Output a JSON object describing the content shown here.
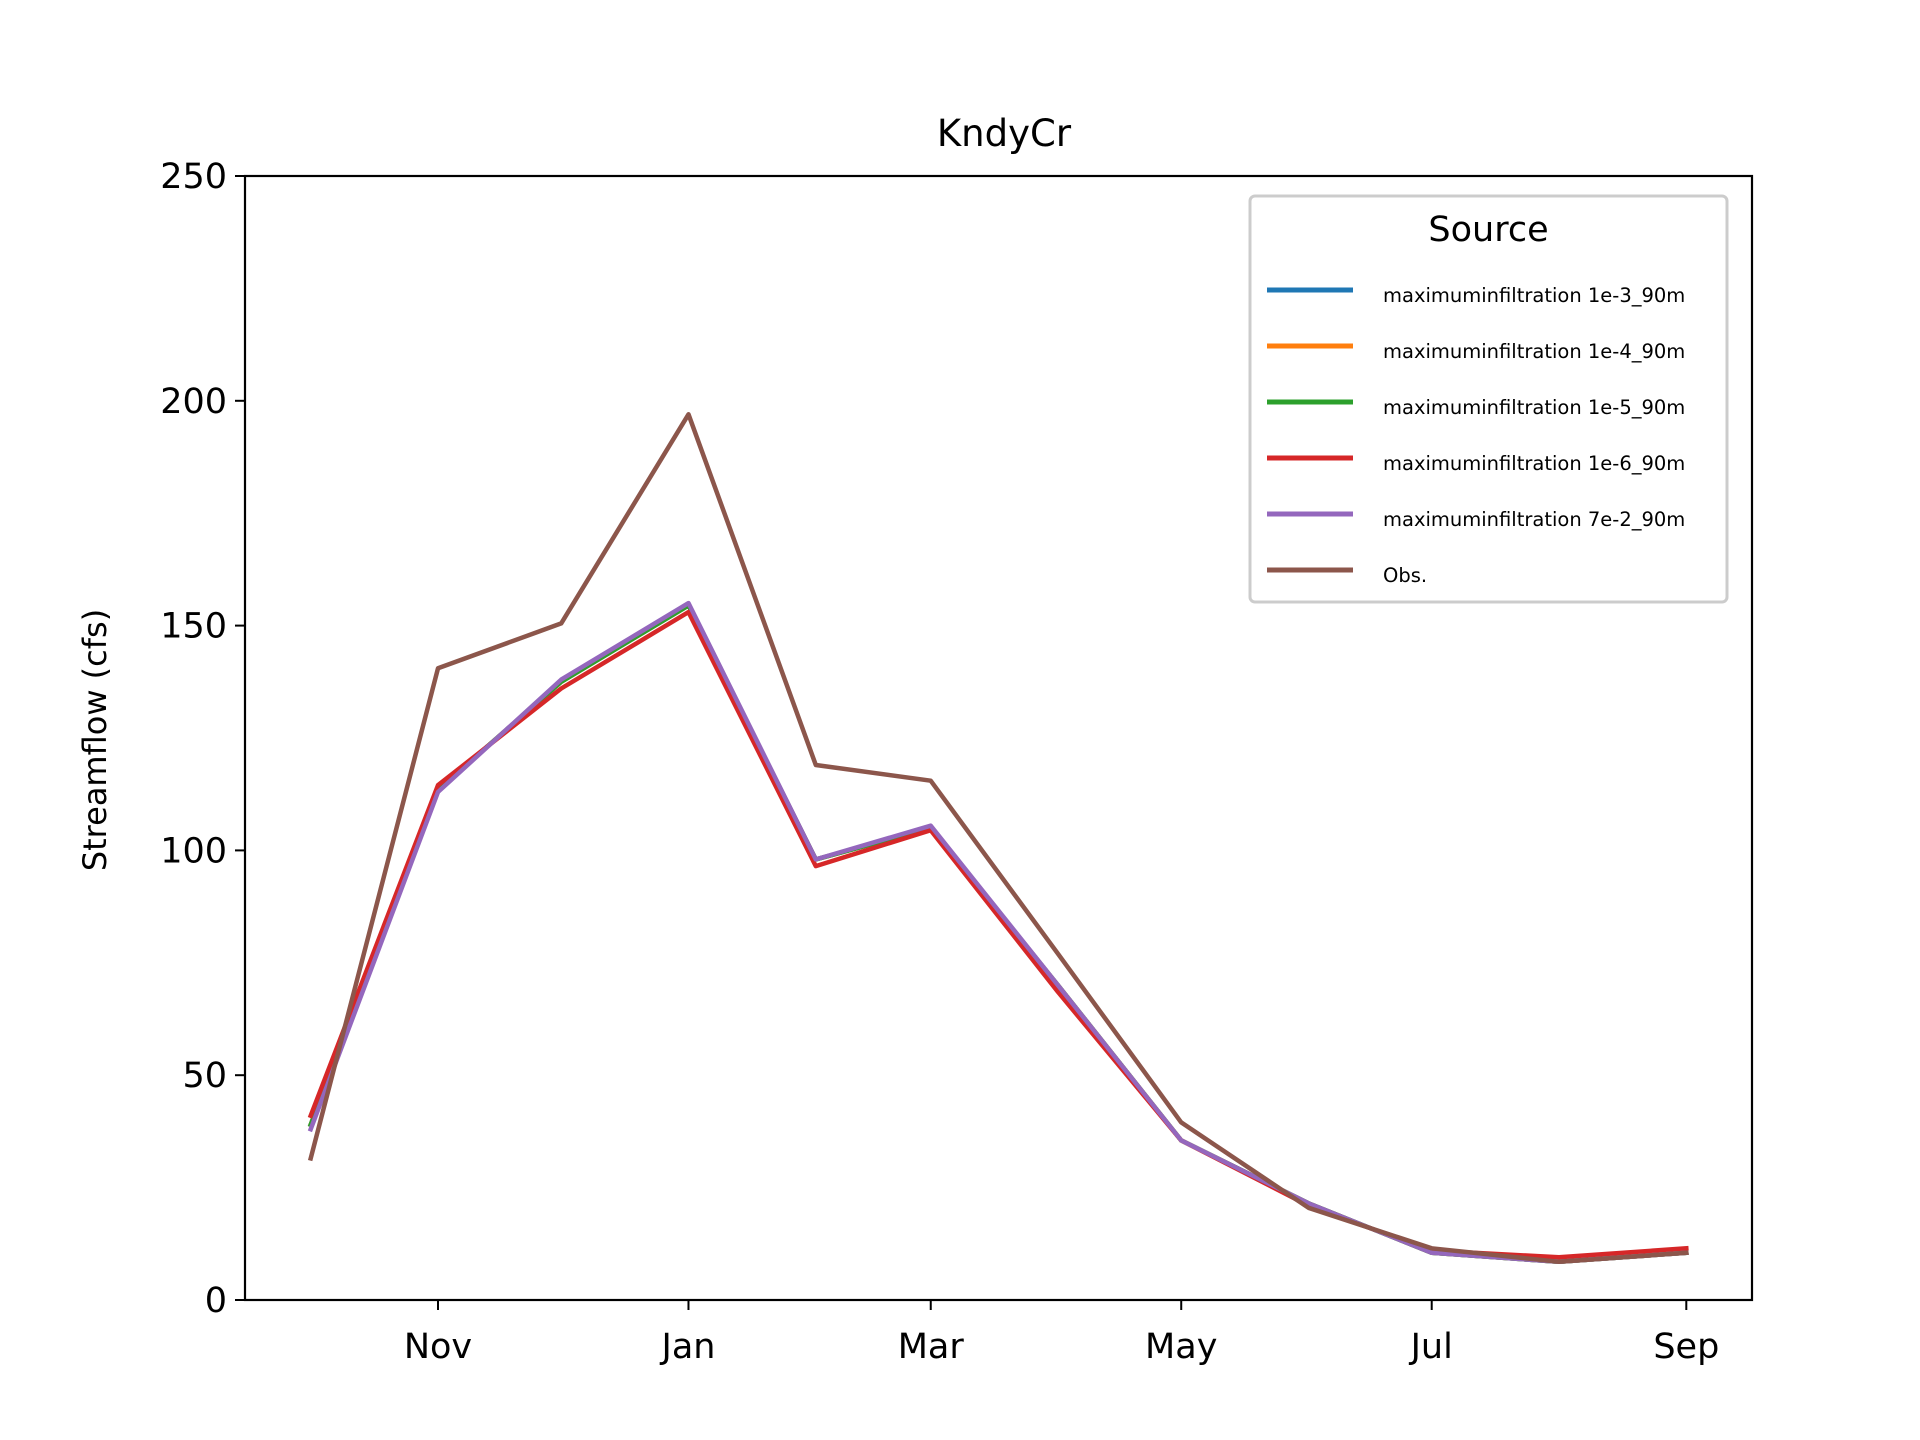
{
  "chart_data": {
    "type": "line",
    "title": "KndyCr",
    "xlabel": "",
    "ylabel": "Streamflow (cfs)",
    "ylim": [
      0,
      250
    ],
    "yticks": [
      0,
      50,
      100,
      150,
      200,
      250
    ],
    "x_tick_labels": [
      "Nov",
      "Jan",
      "Mar",
      "May",
      "Jul",
      "Sep"
    ],
    "x_tick_dates": [
      "2000-11-01",
      "2001-01-01",
      "2001-03-01",
      "2001-05-01",
      "2001-07-01",
      "2001-09-01"
    ],
    "x": [
      "2000-10-01",
      "2000-11-01",
      "2000-12-01",
      "2001-01-01",
      "2001-02-01",
      "2001-03-01",
      "2001-04-01",
      "2001-05-01",
      "2001-06-01",
      "2001-07-01",
      "2001-08-01",
      "2001-09-01"
    ],
    "grid": false,
    "legend": {
      "title": "Source",
      "placement": "top-right"
    },
    "series": [
      {
        "name": "maximuminfiltration 1e-3_90m",
        "color": "#1f77b4",
        "values": [
          39,
          113.5,
          137.5,
          154.5,
          98,
          105,
          70,
          35.5,
          21.5,
          10.5,
          8.5,
          10.5
        ]
      },
      {
        "name": "maximuminfiltration 1e-4_90m",
        "color": "#ff7f0e",
        "values": [
          39,
          113.5,
          137.5,
          154.5,
          98,
          105,
          70,
          35.5,
          21.5,
          10.5,
          8.5,
          10.5
        ]
      },
      {
        "name": "maximuminfiltration 1e-5_90m",
        "color": "#2ca02c",
        "values": [
          39,
          113.5,
          137.5,
          154.5,
          98,
          105,
          70,
          35.5,
          21.5,
          10.5,
          8.5,
          10.5
        ]
      },
      {
        "name": "maximuminfiltration 1e-6_90m",
        "color": "#d62728",
        "values": [
          41,
          114.5,
          136,
          153,
          96.5,
          104.5,
          68.5,
          35.5,
          21,
          11,
          9.5,
          11.5
        ]
      },
      {
        "name": "maximuminfiltration 7e-2_90m",
        "color": "#9467bd",
        "values": [
          38,
          113,
          138,
          155,
          98,
          105.5,
          70,
          35.5,
          21.5,
          10.5,
          8.5,
          10.5
        ]
      },
      {
        "name": "Obs.",
        "color": "#8c564b",
        "values": [
          31.5,
          140.5,
          150.5,
          197,
          119,
          115.5,
          77,
          39.5,
          20.5,
          11.5,
          8.5,
          10.5
        ]
      }
    ]
  }
}
